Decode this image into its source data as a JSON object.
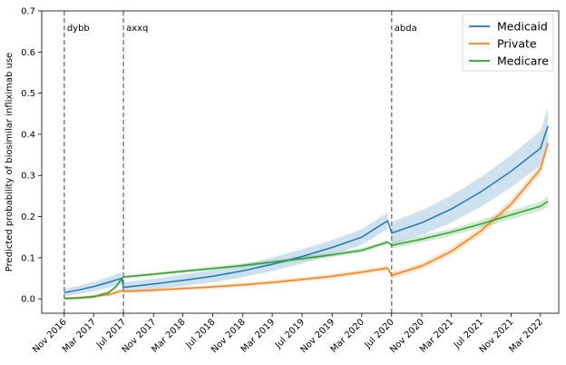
{
  "chart_data": {
    "type": "line",
    "title": "",
    "xlabel": "",
    "ylabel": "Predicted probability of biosimilar infliximab use",
    "x_ticks": [
      "Nov 2016",
      "Mar 2017",
      "Jul 2017",
      "Nov 2017",
      "Mar 2018",
      "Jul 2018",
      "Nov 2018",
      "Mar 2019",
      "Jul 2019",
      "Nov 2019",
      "Mar 2020",
      "Jul 2020",
      "Nov 2020",
      "Mar 2021",
      "Jul 2021",
      "Nov 2021",
      "Mar 2022"
    ],
    "xlim": [
      "2016-08-01",
      "2022-05-15"
    ],
    "ylim": [
      -0.035,
      0.7
    ],
    "y_ticks": [
      0.0,
      0.1,
      0.2,
      0.3,
      0.4,
      0.5,
      0.6,
      0.7
    ],
    "grid": false,
    "legend": "top-right",
    "vlines": [
      {
        "x": "2016-11-01",
        "label": "dybb"
      },
      {
        "x": "2017-07-01",
        "label": "axxq"
      },
      {
        "x": "2020-07-01",
        "label": "abda"
      }
    ],
    "series": [
      {
        "name": "Medicaid",
        "color": "#1f77b4",
        "segments": [
          [
            [
              "2016-11-01",
              0.015
            ],
            [
              "2017-01-01",
              0.022
            ],
            [
              "2017-03-01",
              0.03
            ],
            [
              "2017-05-01",
              0.04
            ],
            [
              "2017-06-01",
              0.046
            ],
            [
              "2017-06-25",
              0.05
            ]
          ],
          [
            [
              "2017-07-01",
              0.028
            ],
            [
              "2017-11-01",
              0.036
            ],
            [
              "2018-03-01",
              0.045
            ],
            [
              "2018-07-01",
              0.055
            ],
            [
              "2018-11-01",
              0.068
            ],
            [
              "2019-03-01",
              0.084
            ],
            [
              "2019-07-01",
              0.103
            ],
            [
              "2019-11-01",
              0.125
            ],
            [
              "2020-03-01",
              0.15
            ],
            [
              "2020-06-15",
              0.19
            ]
          ],
          [
            [
              "2020-07-01",
              0.16
            ],
            [
              "2020-11-01",
              0.185
            ],
            [
              "2021-03-01",
              0.218
            ],
            [
              "2021-07-01",
              0.26
            ],
            [
              "2021-11-01",
              0.31
            ],
            [
              "2022-03-01",
              0.366
            ],
            [
              "2022-04-01",
              0.42
            ]
          ]
        ],
        "ci_halfwidth": [
          0.015,
          0.02,
          0.045
        ]
      },
      {
        "name": "Private",
        "color": "#ff7f0e",
        "segments": [
          [
            [
              "2016-11-01",
              0.001
            ],
            [
              "2017-01-01",
              0.003
            ],
            [
              "2017-03-01",
              0.006
            ],
            [
              "2017-05-01",
              0.01
            ],
            [
              "2017-06-25",
              0.02
            ]
          ],
          [
            [
              "2017-07-01",
              0.018
            ],
            [
              "2017-11-01",
              0.021
            ],
            [
              "2018-03-01",
              0.025
            ],
            [
              "2018-07-01",
              0.029
            ],
            [
              "2018-11-01",
              0.034
            ],
            [
              "2019-03-01",
              0.04
            ],
            [
              "2019-07-01",
              0.047
            ],
            [
              "2019-11-01",
              0.055
            ],
            [
              "2020-03-01",
              0.065
            ],
            [
              "2020-06-15",
              0.075
            ]
          ],
          [
            [
              "2020-07-01",
              0.057
            ],
            [
              "2020-11-01",
              0.08
            ],
            [
              "2021-03-01",
              0.115
            ],
            [
              "2021-07-01",
              0.165
            ],
            [
              "2021-11-01",
              0.23
            ],
            [
              "2022-03-01",
              0.315
            ],
            [
              "2022-04-01",
              0.378
            ]
          ]
        ],
        "ci_halfwidth": [
          0.004,
          0.006,
          0.012
        ]
      },
      {
        "name": "Medicare",
        "color": "#2ca02c",
        "segments": [
          [
            [
              "2016-11-01",
              0.001
            ],
            [
              "2017-01-01",
              0.002
            ],
            [
              "2017-03-01",
              0.005
            ],
            [
              "2017-05-01",
              0.015
            ],
            [
              "2017-06-01",
              0.03
            ],
            [
              "2017-06-25",
              0.05
            ]
          ],
          [
            [
              "2017-07-01",
              0.053
            ],
            [
              "2017-11-01",
              0.06
            ],
            [
              "2018-03-01",
              0.067
            ],
            [
              "2018-07-01",
              0.074
            ],
            [
              "2018-11-01",
              0.081
            ],
            [
              "2019-03-01",
              0.089
            ],
            [
              "2019-07-01",
              0.098
            ],
            [
              "2019-11-01",
              0.107
            ],
            [
              "2020-03-01",
              0.118
            ],
            [
              "2020-06-15",
              0.138
            ]
          ],
          [
            [
              "2020-07-01",
              0.13
            ],
            [
              "2020-11-01",
              0.145
            ],
            [
              "2021-03-01",
              0.162
            ],
            [
              "2021-07-01",
              0.182
            ],
            [
              "2021-11-01",
              0.204
            ],
            [
              "2022-03-01",
              0.225
            ],
            [
              "2022-04-01",
              0.237
            ]
          ]
        ],
        "ci_halfwidth": [
          0.005,
          0.006,
          0.012
        ]
      }
    ]
  }
}
